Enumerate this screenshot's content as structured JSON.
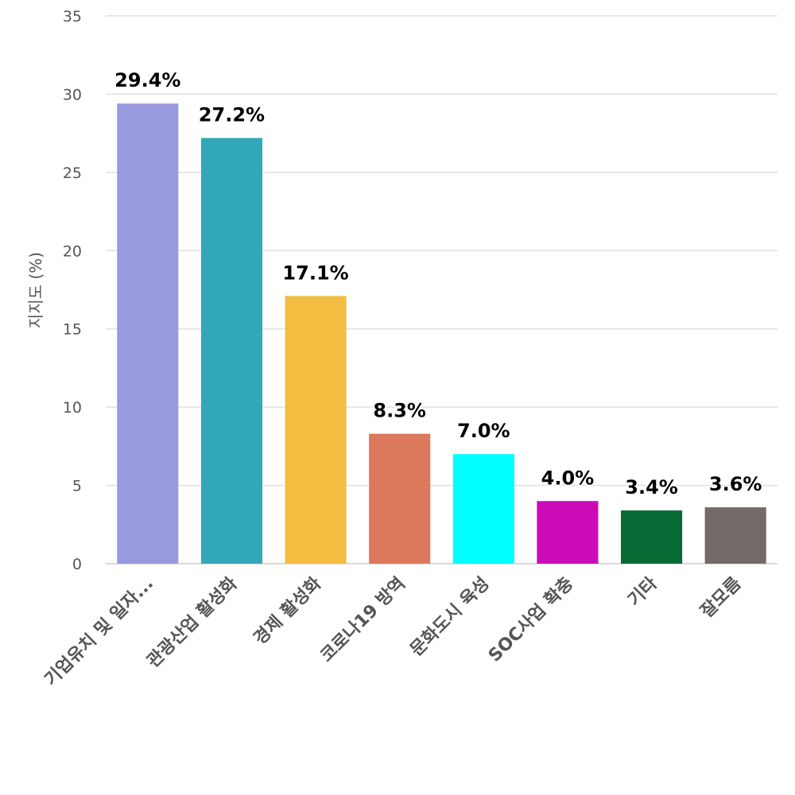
{
  "chart_data": {
    "type": "bar",
    "title": "",
    "xlabel": "",
    "ylabel": "지지도 (%)",
    "ylim": [
      0,
      35
    ],
    "yticks": [
      0,
      5,
      10,
      15,
      20,
      25,
      30,
      35
    ],
    "grid": true,
    "legend": "none",
    "categories": [
      "기업유치 및 일자...",
      "관광산업 활성화",
      "경제 활성화",
      "코로나19 방역",
      "문화도시 육성",
      "SOC사업 확충",
      "기타",
      "잘모름"
    ],
    "values": [
      29.4,
      27.2,
      17.1,
      8.3,
      7.0,
      4.0,
      3.4,
      3.6
    ],
    "data_labels": [
      "29.4%",
      "27.2%",
      "17.1%",
      "8.3%",
      "7.0%",
      "4.0%",
      "3.4%",
      "3.6%"
    ],
    "colors": [
      "#9999dd",
      "#31a8b9",
      "#f4bd42",
      "#dc785c",
      "#00ffff",
      "#cc0bb8",
      "#066b35",
      "#746a68"
    ]
  }
}
